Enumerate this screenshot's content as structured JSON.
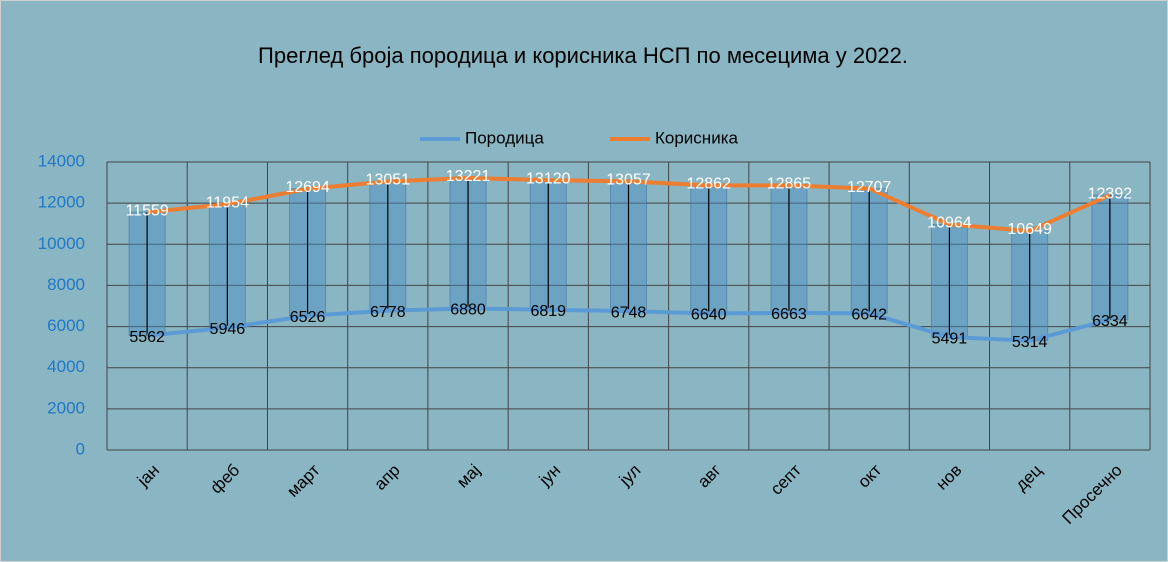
{
  "chart_data": {
    "type": "line",
    "title": "Преглед броја породица и корисника НСП  по месецима у 2022.",
    "categories": [
      "јан",
      "феб",
      "март",
      "апр",
      "мај",
      "јун",
      "јул",
      "авг",
      "септ",
      "окт",
      "нов",
      "дец",
      "Просечно"
    ],
    "series": [
      {
        "name": "Породица",
        "color": "#5b9bd5",
        "values": [
          5562,
          5946,
          6526,
          6778,
          6880,
          6819,
          6748,
          6640,
          6663,
          6642,
          5491,
          5314,
          6334
        ]
      },
      {
        "name": "Корисника",
        "color": "#ed7d31",
        "values": [
          11559,
          11954,
          12694,
          13051,
          13221,
          13120,
          13057,
          12862,
          12865,
          12707,
          10964,
          10649,
          12392
        ]
      }
    ],
    "ylim": [
      0,
      14000
    ],
    "yticks": [
      0,
      2000,
      4000,
      6000,
      8000,
      10000,
      12000,
      14000
    ],
    "grid": true,
    "legend": "top"
  }
}
